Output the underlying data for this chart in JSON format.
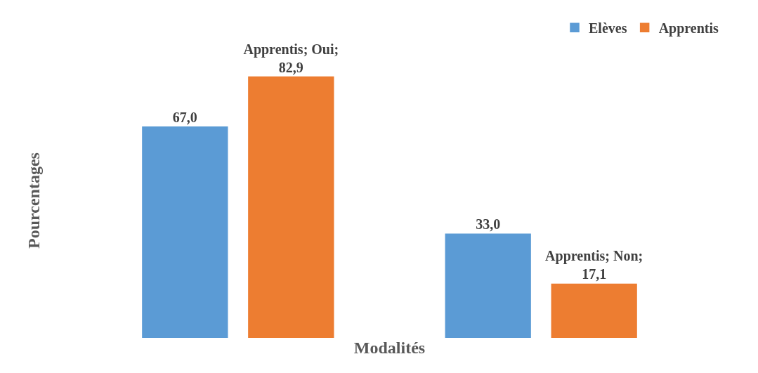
{
  "chart_data": {
    "type": "bar",
    "tick_labels": false,
    "xlabel": "Modalités",
    "ylabel": "Pourcentages",
    "categories": [
      null,
      null
    ],
    "series": [
      {
        "name": "Elèves",
        "color": "#5b9bd5",
        "values": [
          67.0,
          33.0
        ],
        "value_labels": [
          "67,0",
          "33,0"
        ]
      },
      {
        "name": "Apprentis",
        "color": "#ed7d31",
        "values": [
          82.9,
          17.1
        ],
        "value_labels": [
          "Apprentis; Oui; 82,9",
          "Apprentis; Non; 17,1"
        ]
      }
    ],
    "legend": "top right"
  }
}
